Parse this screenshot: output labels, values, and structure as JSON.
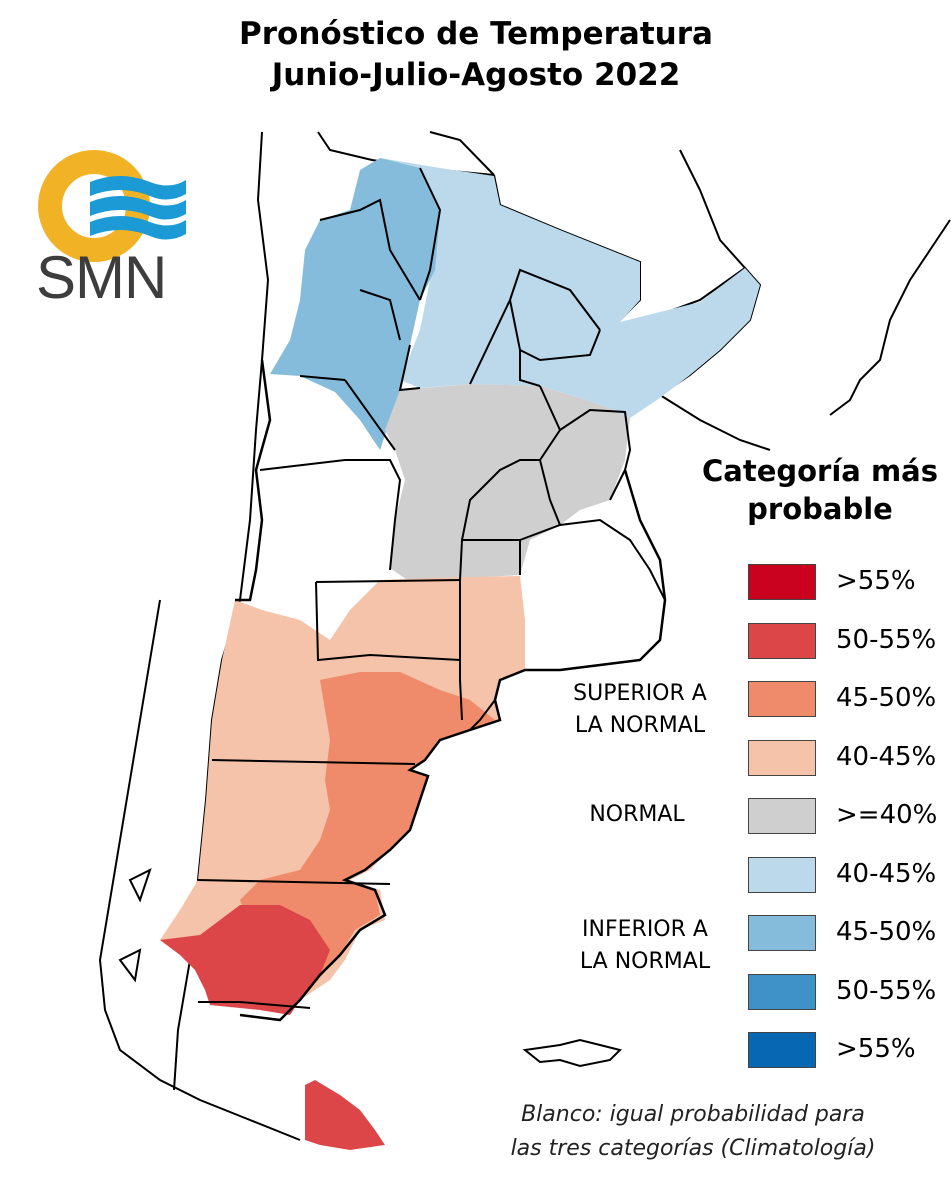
{
  "title_lines": [
    "Pronóstico de Temperatura",
    "Junio-Julio-Agosto 2022"
  ],
  "logo": {
    "text": "SMN",
    "icon": "smn-sun-waves-logo",
    "ring_color": "#f2b225",
    "wave_color": "#1b9ad6"
  },
  "legend": {
    "title_lines": [
      "Categoría más",
      "probable"
    ],
    "groups": {
      "superior": [
        "SUPERIOR A",
        "LA NORMAL"
      ],
      "normal": [
        "NORMAL"
      ],
      "inferior": [
        "INFERIOR A",
        "LA NORMAL"
      ]
    },
    "items": [
      {
        "label": ">55%",
        "color": "#cb0120"
      },
      {
        "label": "50-55%",
        "color": "#dc4649"
      },
      {
        "label": "45-50%",
        "color": "#ef8a6b"
      },
      {
        "label": "40-45%",
        "color": "#f4c3a9"
      },
      {
        "label": ">=40%",
        "color": "#cfcfcf"
      },
      {
        "label": "40-45%",
        "color": "#bcd9eb"
      },
      {
        "label": "45-50%",
        "color": "#85bcdc"
      },
      {
        "label": "50-55%",
        "color": "#3f92c7"
      },
      {
        "label": ">55%",
        "color": "#0867b2"
      }
    ]
  },
  "note_lines": [
    "Blanco: igual probabilidad para",
    "las tres categorías (Climatología)"
  ]
}
